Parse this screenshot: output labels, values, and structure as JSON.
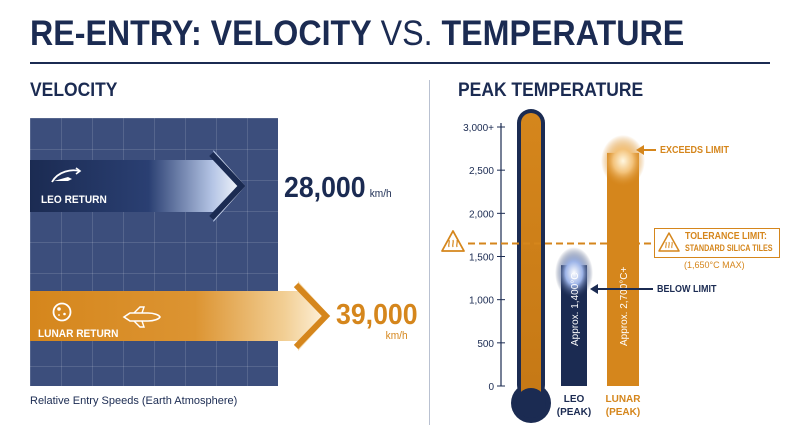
{
  "title": {
    "part1": "RE-ENTRY: VELOCITY",
    "vs": " VS. ",
    "part2": "TEMPERATURE"
  },
  "velocity_section": {
    "heading": "VELOCITY",
    "caption": "Relative Entry Speeds (Earth Atmosphere)",
    "bars": [
      {
        "label": "LEO RETURN",
        "value_text": "28,000",
        "unit": "km/h",
        "color": "#1b2b52"
      },
      {
        "label": "LUNAR RETURN",
        "value_text": "39,000",
        "unit": "km/h",
        "color": "#d5861c"
      }
    ]
  },
  "temperature_section": {
    "heading": "PEAK TEMPERATURE",
    "tolerance_callout": {
      "line1": "TOLERANCE LIMIT:",
      "line2": "STANDARD SILICA TILES",
      "note": "(1,650°C MAX)"
    },
    "exceeds_label": "EXCEEDS LIMIT",
    "below_label": "BELOW LIMIT"
  },
  "colors": {
    "navy": "#1b2b52",
    "orange": "#d5861c",
    "panel": "#3c4e7c",
    "white": "#ffffff"
  },
  "chart_data": [
    {
      "type": "bar",
      "orientation": "horizontal",
      "categories": [
        "LEO RETURN",
        "LUNAR RETURN"
      ],
      "values": [
        28000,
        39000
      ],
      "unit": "km/h",
      "caption": "Relative Entry Speeds (Earth Atmosphere)"
    },
    {
      "type": "bar",
      "categories": [
        "LEO",
        "LUNAR"
      ],
      "category_sublabel": "(PEAK)",
      "values": [
        1400,
        2700
      ],
      "bar_labels": [
        "Approx. 1,400°C",
        "Approx. 2,700°C+"
      ],
      "yticks": [
        "0",
        "500",
        "1,000",
        "1,500",
        "2,000",
        "2,500",
        "3,000+"
      ],
      "ytick_values": [
        0,
        500,
        1000,
        1500,
        2000,
        2500,
        3000
      ],
      "ylim": [
        0,
        3000
      ],
      "reference_line": {
        "value": 1650,
        "label": "TOLERANCE LIMIT: STANDARD SILICA TILES (1,650°C MAX)"
      },
      "thermometer_max": 3000
    }
  ]
}
